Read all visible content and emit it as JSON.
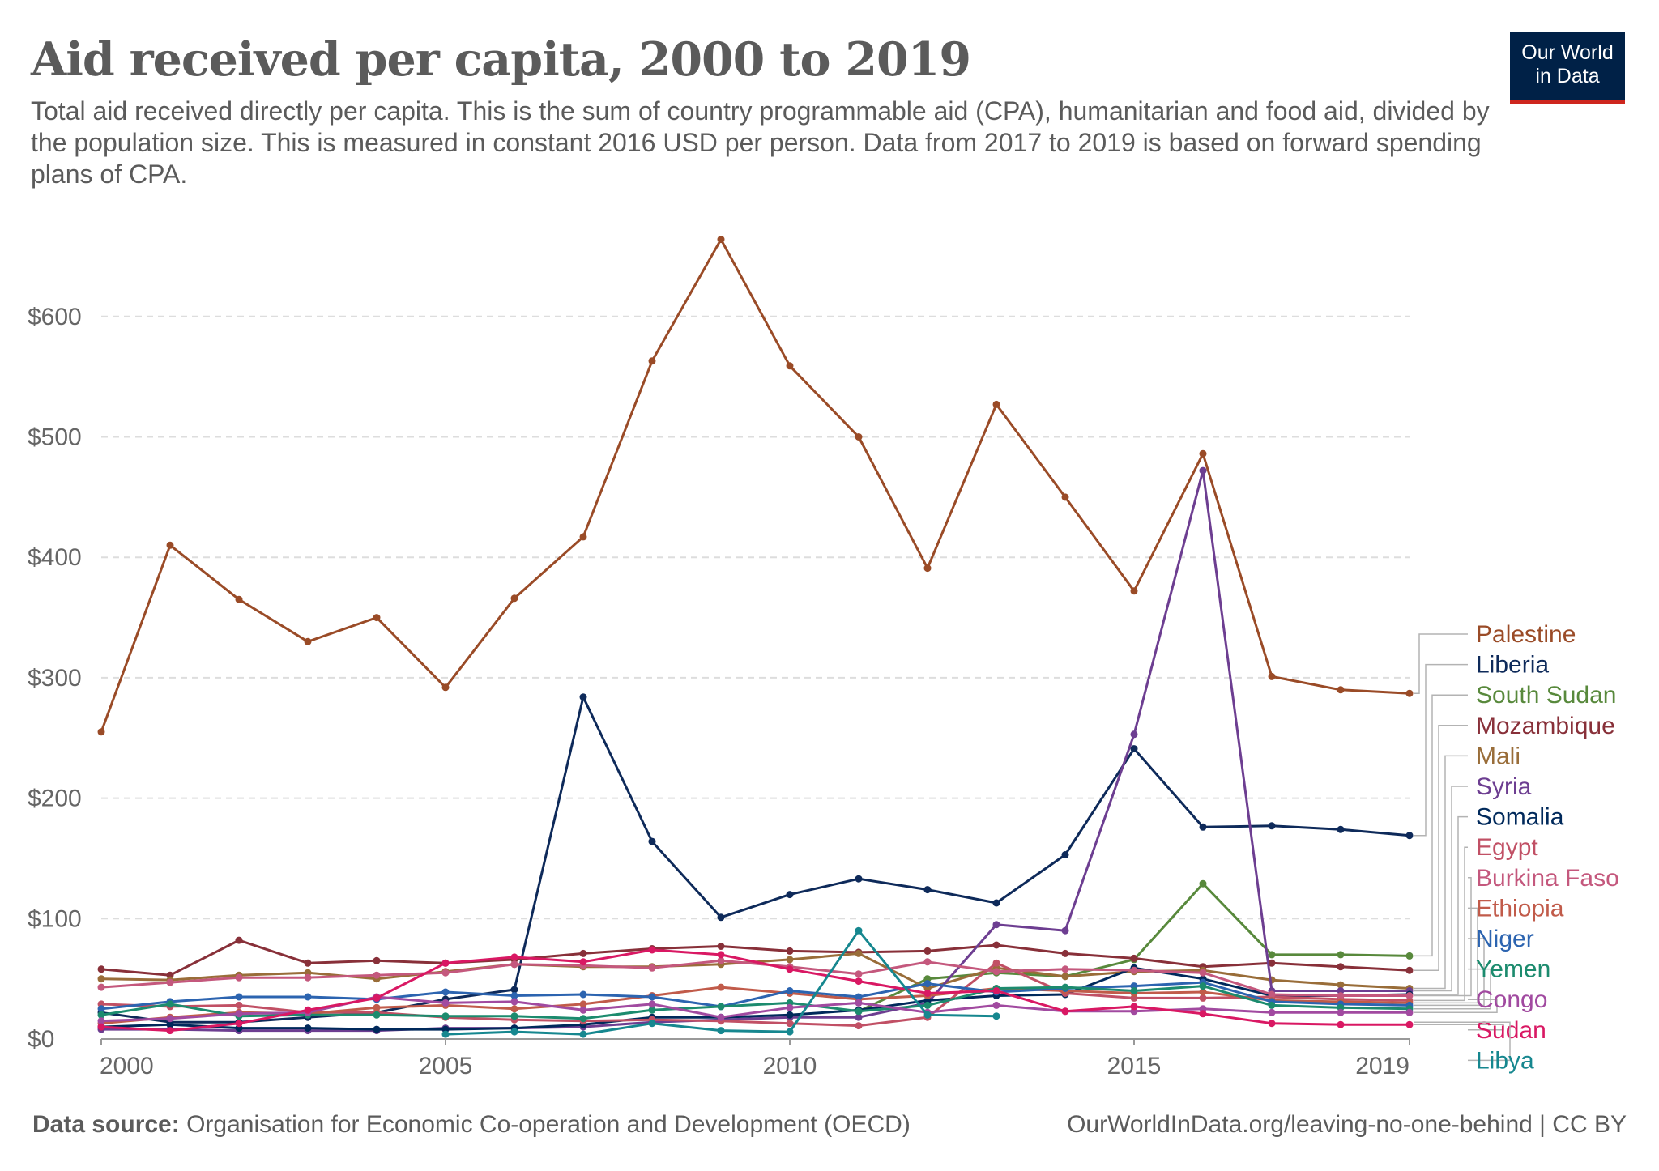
{
  "header": {
    "title": "Aid received per capita, 2000 to 2019",
    "subtitle": "Total aid received directly per capita. This is the sum of country programmable aid (CPA), humanitarian and food aid, divided by the population size. This is measured in constant 2016 USD per person. Data from 2017 to 2019 is based on forward spending plans of CPA."
  },
  "logo": {
    "line1": "Our World",
    "line2": "in Data"
  },
  "footer": {
    "source_label": "Data source:",
    "source_text": "Organisation for Economic Co-operation and Development (OECD)",
    "url_license": "OurWorldInData.org/leaving-no-one-behind | CC BY"
  },
  "colors": {
    "brand_navy": "#002147",
    "brand_red": "#ce261e",
    "grid": "#dddddd",
    "text": "#5b5b5b"
  },
  "chart_data": {
    "type": "line",
    "title": "Aid received per capita, 2000 to 2019",
    "xlabel": "",
    "ylabel": "",
    "xlim": [
      2000,
      2019
    ],
    "ylim": [
      0,
      660
    ],
    "x_ticks": [
      2000,
      2005,
      2010,
      2015,
      2019
    ],
    "x_tick_labels": [
      "2000",
      "2005",
      "2010",
      "2015",
      "2019"
    ],
    "y_ticks": [
      0,
      100,
      200,
      300,
      400,
      500,
      600
    ],
    "y_tick_labels": [
      "$0",
      "$100",
      "$200",
      "$300",
      "$400",
      "$500",
      "$600"
    ],
    "grid": true,
    "legend": "right",
    "x": [
      2000,
      2001,
      2002,
      2003,
      2004,
      2005,
      2006,
      2007,
      2008,
      2009,
      2010,
      2011,
      2012,
      2013,
      2014,
      2015,
      2016,
      2017,
      2018,
      2019
    ],
    "series": [
      {
        "name": "Palestine",
        "color": "#9a4b27",
        "values": [
          255,
          410,
          365,
          330,
          350,
          292,
          366,
          417,
          563,
          664,
          559,
          500,
          391,
          527,
          450,
          372,
          486,
          301,
          290,
          287
        ]
      },
      {
        "name": "Liberia",
        "color": "#0e2a5a",
        "values": [
          22,
          14,
          14,
          18,
          22,
          33,
          41,
          284,
          164,
          101,
          120,
          133,
          124,
          113,
          153,
          241,
          176,
          177,
          174,
          169
        ]
      },
      {
        "name": "South Sudan",
        "color": "#58893c",
        "values": [
          null,
          null,
          null,
          null,
          null,
          null,
          null,
          null,
          null,
          null,
          null,
          23,
          50,
          55,
          52,
          66,
          129,
          70,
          70,
          69
        ]
      },
      {
        "name": "Mozambique",
        "color": "#883039",
        "values": [
          58,
          53,
          82,
          63,
          65,
          63,
          66,
          71,
          75,
          77,
          73,
          72,
          73,
          78,
          71,
          67,
          60,
          63,
          60,
          57
        ]
      },
      {
        "name": "Mali",
        "color": "#996d39",
        "values": [
          50,
          49,
          53,
          55,
          50,
          56,
          62,
          60,
          60,
          62,
          66,
          71,
          42,
          59,
          52,
          56,
          57,
          49,
          45,
          42
        ]
      },
      {
        "name": "Syria",
        "color": "#6d3e91",
        "values": [
          8,
          8,
          7,
          7,
          7,
          9,
          9,
          10,
          14,
          16,
          18,
          18,
          30,
          95,
          90,
          253,
          472,
          40,
          40,
          40
        ]
      },
      {
        "name": "Somalia",
        "color": "#00295b",
        "values": [
          10,
          12,
          9,
          9,
          8,
          8,
          9,
          12,
          18,
          18,
          20,
          24,
          32,
          36,
          37,
          59,
          50,
          36,
          36,
          37
        ]
      },
      {
        "name": "Egypt",
        "color": "#c15065",
        "values": [
          29,
          27,
          28,
          22,
          22,
          18,
          16,
          15,
          16,
          15,
          13,
          11,
          18,
          63,
          38,
          34,
          34,
          35,
          33,
          32
        ]
      },
      {
        "name": "Burkina Faso",
        "color": "#c4587d",
        "values": [
          43,
          47,
          51,
          51,
          53,
          55,
          62,
          61,
          59,
          65,
          60,
          54,
          64,
          56,
          58,
          57,
          55,
          37,
          36,
          36
        ]
      },
      {
        "name": "Ethiopia",
        "color": "#c15b4a",
        "values": [
          13,
          18,
          22,
          21,
          26,
          28,
          25,
          29,
          36,
          43,
          38,
          33,
          36,
          42,
          40,
          38,
          39,
          32,
          31,
          30
        ]
      },
      {
        "name": "Niger",
        "color": "#2c64b0",
        "values": [
          25,
          31,
          35,
          35,
          33,
          39,
          36,
          37,
          35,
          27,
          40,
          35,
          46,
          39,
          42,
          44,
          47,
          31,
          29,
          28
        ]
      },
      {
        "name": "Yemen",
        "color": "#1c8b6e",
        "values": [
          20,
          29,
          19,
          20,
          20,
          19,
          19,
          17,
          24,
          27,
          30,
          23,
          28,
          42,
          43,
          40,
          44,
          28,
          26,
          25
        ]
      },
      {
        "name": "Congo",
        "color": "#a14aa0",
        "values": [
          15,
          17,
          21,
          22,
          35,
          30,
          31,
          24,
          29,
          18,
          26,
          30,
          22,
          28,
          23,
          23,
          25,
          22,
          22,
          22
        ]
      },
      {
        "name": "Sudan",
        "color": "#d91863",
        "values": [
          10,
          7,
          13,
          24,
          34,
          63,
          68,
          64,
          74,
          70,
          58,
          48,
          38,
          40,
          23,
          27,
          21,
          13,
          12,
          12
        ]
      },
      {
        "name": "Libya",
        "color": "#16878f",
        "values": [
          null,
          null,
          null,
          null,
          null,
          4,
          6,
          4,
          13,
          7,
          6,
          90,
          20,
          19,
          null,
          null,
          null,
          null,
          null,
          null
        ]
      }
    ]
  }
}
